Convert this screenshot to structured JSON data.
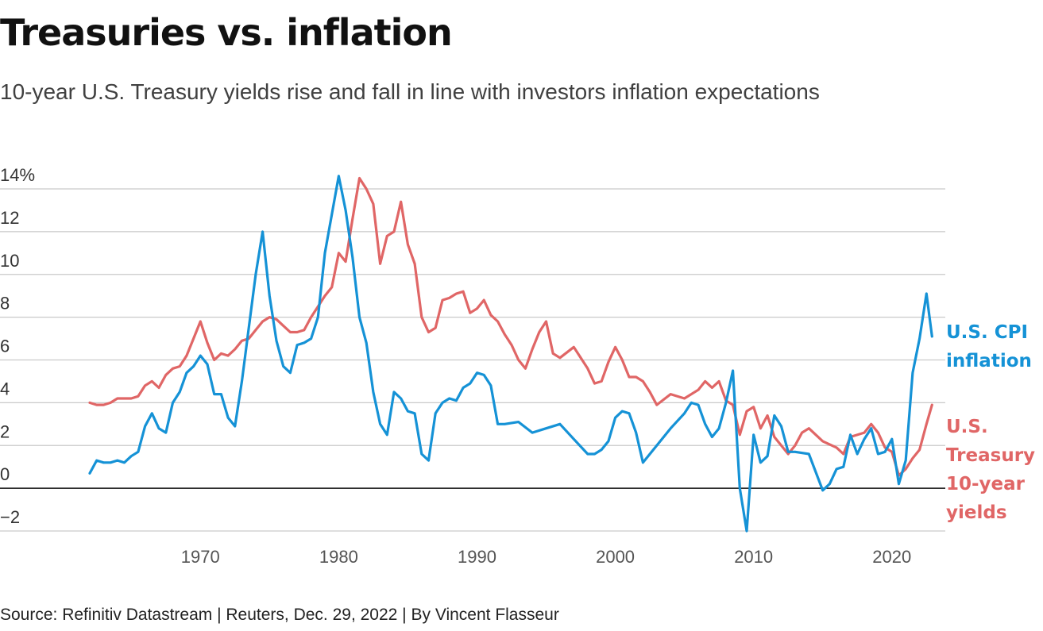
{
  "header": {
    "title": "Treasuries vs. inflation",
    "subtitle": "10-year U.S. Treasury yields rise and fall in line with investors inflation expectations"
  },
  "footer": {
    "source": "Source: Refinitiv Datastream | Reuters, Dec. 29, 2022 | By Vincent Flasseur"
  },
  "chart_data": {
    "type": "line",
    "title": "Treasuries vs. inflation",
    "subtitle": "10-year U.S. Treasury yields rise and fall in line with investors inflation expectations",
    "xlabel": "",
    "ylabel": "",
    "xlim": [
      1962,
      2023
    ],
    "ylim": [
      -2,
      14
    ],
    "yticks": [
      -2,
      0,
      2,
      4,
      6,
      8,
      10,
      12,
      14
    ],
    "ytick_labels": [
      "−2",
      "0",
      "2",
      "4",
      "6",
      "8",
      "10",
      "12",
      "14%"
    ],
    "xticks": [
      1970,
      1980,
      1990,
      2000,
      2010,
      2020
    ],
    "xtick_labels": [
      "1970",
      "1980",
      "1990",
      "2000",
      "2010",
      "2020"
    ],
    "grid": "horizontal",
    "zero_line": true,
    "legend": "direct labels at right end of lines",
    "series": [
      {
        "name": "U.S. CPI inflation",
        "label_lines": [
          "U.S. CPI",
          "inflation"
        ],
        "color": "#1592d6",
        "x": [
          1962.0,
          1962.5,
          1963.0,
          1963.5,
          1964.0,
          1964.5,
          1965.0,
          1965.5,
          1966.0,
          1966.5,
          1967.0,
          1967.5,
          1968.0,
          1968.5,
          1969.0,
          1969.5,
          1970.0,
          1970.5,
          1971.0,
          1971.5,
          1972.0,
          1972.5,
          1973.0,
          1973.5,
          1974.0,
          1974.5,
          1975.0,
          1975.5,
          1976.0,
          1976.5,
          1977.0,
          1977.5,
          1978.0,
          1978.5,
          1979.0,
          1979.5,
          1980.0,
          1980.5,
          1981.0,
          1981.5,
          1982.0,
          1982.5,
          1983.0,
          1983.5,
          1984.0,
          1984.5,
          1985.0,
          1985.5,
          1986.0,
          1986.5,
          1987.0,
          1987.5,
          1988.0,
          1988.5,
          1989.0,
          1989.5,
          1990.0,
          1990.5,
          1991.0,
          1991.5,
          1992.0,
          1993.0,
          1994.0,
          1995.0,
          1996.0,
          1997.0,
          1998.0,
          1998.5,
          1999.0,
          1999.5,
          2000.0,
          2000.5,
          2001.0,
          2001.5,
          2002.0,
          2002.5,
          2003.0,
          2004.0,
          2005.0,
          2005.5,
          2006.0,
          2006.5,
          2007.0,
          2007.5,
          2008.0,
          2008.5,
          2009.0,
          2009.5,
          2010.0,
          2010.5,
          2011.0,
          2011.5,
          2012.0,
          2012.5,
          2013.0,
          2014.0,
          2015.0,
          2015.5,
          2016.0,
          2016.5,
          2017.0,
          2017.5,
          2018.0,
          2018.5,
          2019.0,
          2019.5,
          2020.0,
          2020.5,
          2021.0,
          2021.5,
          2022.0,
          2022.5,
          2022.9
        ],
        "y": [
          0.7,
          1.3,
          1.2,
          1.2,
          1.3,
          1.2,
          1.5,
          1.7,
          2.9,
          3.5,
          2.8,
          2.6,
          4.0,
          4.5,
          5.4,
          5.7,
          6.2,
          5.8,
          4.4,
          4.4,
          3.3,
          2.9,
          5.0,
          7.5,
          10.0,
          12.0,
          9.0,
          6.9,
          5.7,
          5.4,
          6.7,
          6.8,
          7.0,
          8.0,
          11.0,
          12.8,
          14.6,
          13.0,
          10.8,
          8.0,
          6.8,
          4.5,
          3.0,
          2.5,
          4.5,
          4.2,
          3.6,
          3.5,
          1.6,
          1.3,
          3.5,
          4.0,
          4.2,
          4.1,
          4.7,
          4.9,
          5.4,
          5.3,
          4.8,
          3.0,
          3.0,
          3.1,
          2.6,
          2.8,
          3.0,
          2.3,
          1.6,
          1.6,
          1.8,
          2.2,
          3.3,
          3.6,
          3.5,
          2.6,
          1.2,
          1.6,
          2.0,
          2.8,
          3.5,
          4.0,
          3.9,
          3.0,
          2.4,
          2.8,
          4.0,
          5.5,
          0.0,
          -2.0,
          2.5,
          1.2,
          1.5,
          3.4,
          2.9,
          1.7,
          1.7,
          1.6,
          -0.1,
          0.2,
          0.9,
          1.0,
          2.5,
          1.6,
          2.3,
          2.8,
          1.6,
          1.7,
          2.3,
          0.2,
          1.3,
          5.4,
          7.0,
          9.1,
          7.1
        ]
      },
      {
        "name": "U.S. Treasury 10-year yields",
        "label_lines": [
          "U.S.",
          "Treasury",
          "10-year",
          "yields"
        ],
        "color": "#e06666",
        "x": [
          1962.0,
          1962.5,
          1963.0,
          1963.5,
          1964.0,
          1964.5,
          1965.0,
          1965.5,
          1966.0,
          1966.5,
          1967.0,
          1967.5,
          1968.0,
          1968.5,
          1969.0,
          1969.5,
          1970.0,
          1970.5,
          1971.0,
          1971.5,
          1972.0,
          1972.5,
          1973.0,
          1973.5,
          1974.0,
          1974.5,
          1975.0,
          1975.5,
          1976.0,
          1976.5,
          1977.0,
          1977.5,
          1978.0,
          1978.5,
          1979.0,
          1979.5,
          1980.0,
          1980.5,
          1981.0,
          1981.5,
          1982.0,
          1982.5,
          1983.0,
          1983.5,
          1984.0,
          1984.5,
          1985.0,
          1985.5,
          1986.0,
          1986.5,
          1987.0,
          1987.5,
          1988.0,
          1988.5,
          1989.0,
          1989.5,
          1990.0,
          1990.5,
          1991.0,
          1991.5,
          1992.0,
          1992.5,
          1993.0,
          1993.5,
          1994.0,
          1994.5,
          1995.0,
          1995.5,
          1996.0,
          1997.0,
          1998.0,
          1998.5,
          1999.0,
          1999.5,
          2000.0,
          2000.5,
          2001.0,
          2001.5,
          2002.0,
          2002.5,
          2003.0,
          2004.0,
          2005.0,
          2006.0,
          2006.5,
          2007.0,
          2007.5,
          2008.0,
          2008.5,
          2009.0,
          2009.5,
          2010.0,
          2010.5,
          2011.0,
          2011.5,
          2012.0,
          2012.5,
          2013.0,
          2013.5,
          2014.0,
          2015.0,
          2016.0,
          2016.5,
          2017.0,
          2018.0,
          2018.5,
          2019.0,
          2019.5,
          2020.0,
          2020.5,
          2021.0,
          2021.5,
          2022.0,
          2022.5,
          2022.9
        ],
        "y": [
          4.0,
          3.9,
          3.9,
          4.0,
          4.2,
          4.2,
          4.2,
          4.3,
          4.8,
          5.0,
          4.7,
          5.3,
          5.6,
          5.7,
          6.2,
          7.0,
          7.8,
          6.8,
          6.0,
          6.3,
          6.2,
          6.5,
          6.9,
          7.0,
          7.4,
          7.8,
          8.0,
          7.9,
          7.6,
          7.3,
          7.3,
          7.4,
          8.0,
          8.5,
          9.0,
          9.4,
          11.0,
          10.6,
          12.6,
          14.5,
          14.0,
          13.3,
          10.5,
          11.8,
          12.0,
          13.4,
          11.4,
          10.5,
          8.0,
          7.3,
          7.5,
          8.8,
          8.9,
          9.1,
          9.2,
          8.2,
          8.4,
          8.8,
          8.1,
          7.8,
          7.2,
          6.7,
          6.0,
          5.6,
          6.5,
          7.3,
          7.8,
          6.3,
          6.1,
          6.6,
          5.6,
          4.9,
          5.0,
          5.9,
          6.6,
          6.0,
          5.2,
          5.2,
          5.0,
          4.5,
          3.9,
          4.4,
          4.2,
          4.6,
          5.0,
          4.7,
          5.0,
          4.1,
          3.9,
          2.5,
          3.6,
          3.8,
          2.8,
          3.4,
          2.4,
          2.0,
          1.6,
          2.0,
          2.6,
          2.8,
          2.2,
          1.9,
          1.6,
          2.4,
          2.6,
          3.0,
          2.6,
          1.9,
          1.7,
          0.6,
          0.9,
          1.4,
          1.8,
          3.0,
          3.9
        ]
      }
    ]
  }
}
